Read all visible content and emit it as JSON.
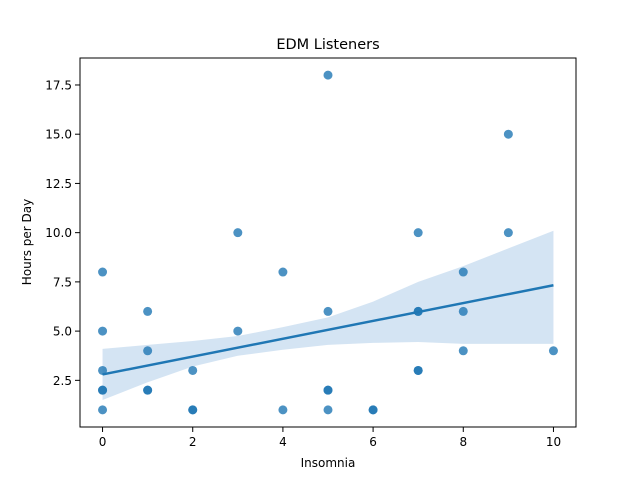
{
  "chart_data": {
    "type": "scatter",
    "title": "EDM Listeners",
    "xlabel": "Insomnia",
    "ylabel": "Hours per Day",
    "xlim": [
      -0.5,
      10.5
    ],
    "ylim": [
      0.13,
      18.87
    ],
    "xticks": [
      0,
      2,
      4,
      6,
      8,
      10
    ],
    "xtick_labels": [
      "0",
      "2",
      "4",
      "6",
      "8",
      "10"
    ],
    "yticks": [
      2.5,
      5.0,
      7.5,
      10.0,
      12.5,
      15.0,
      17.5
    ],
    "ytick_labels": [
      "2.5",
      "5.0",
      "7.5",
      "10.0",
      "12.5",
      "15.0",
      "17.5"
    ],
    "grid": false,
    "legend": "none",
    "colors": {
      "points": "#1f77b4",
      "regression_line": "#1f77b4",
      "confidence_band": "#c6dbef"
    },
    "series": [
      {
        "points": [
          [
            0,
            1
          ],
          [
            0,
            2
          ],
          [
            0,
            2
          ],
          [
            0,
            3
          ],
          [
            0,
            5
          ],
          [
            0,
            8
          ],
          [
            1,
            2
          ],
          [
            1,
            2
          ],
          [
            1,
            4
          ],
          [
            1,
            6
          ],
          [
            2,
            1
          ],
          [
            2,
            1
          ],
          [
            2,
            3
          ],
          [
            3,
            5
          ],
          [
            3,
            10
          ],
          [
            4,
            1
          ],
          [
            4,
            8
          ],
          [
            5,
            1
          ],
          [
            5,
            2
          ],
          [
            5,
            2
          ],
          [
            5,
            6
          ],
          [
            5,
            18
          ],
          [
            6,
            1
          ],
          [
            6,
            1
          ],
          [
            7,
            3
          ],
          [
            7,
            3
          ],
          [
            7,
            6
          ],
          [
            7,
            6
          ],
          [
            7,
            10
          ],
          [
            8,
            4
          ],
          [
            8,
            6
          ],
          [
            8,
            8
          ],
          [
            9,
            10
          ],
          [
            9,
            15
          ],
          [
            10,
            4
          ]
        ]
      }
    ],
    "regression": {
      "x": [
        0,
        10
      ],
      "y": [
        2.8,
        7.33
      ]
    },
    "confidence_band": {
      "x": [
        0,
        1,
        2,
        3,
        4,
        5,
        6,
        7,
        8,
        9,
        10
      ],
      "lower": [
        1.5,
        2.4,
        3.2,
        3.75,
        4.05,
        4.3,
        4.4,
        4.45,
        4.35,
        4.35,
        4.35
      ],
      "upper": [
        4.1,
        4.3,
        4.5,
        4.75,
        5.2,
        5.7,
        6.5,
        7.5,
        8.3,
        9.2,
        10.1
      ]
    }
  }
}
